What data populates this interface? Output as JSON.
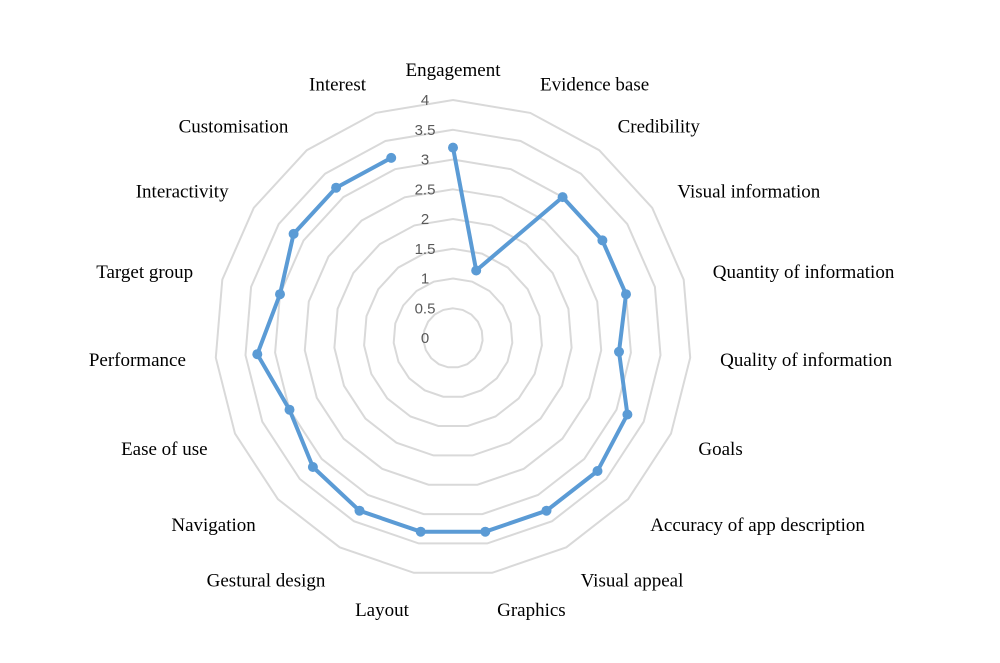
{
  "chart_data": {
    "type": "radar",
    "categories": [
      "Engagement",
      "Evidence base",
      "Credibility",
      "Visual information",
      "Quantity of information",
      "Quality of information",
      "Goals",
      "Accuracy of app description",
      "Visual appeal",
      "Graphics",
      "Layout",
      "Gestural design",
      "Navigation",
      "Ease of use",
      "Performance",
      "Target group",
      "Interactivity",
      "Customisation",
      "Interest"
    ],
    "series": [
      {
        "values": [
          3.2,
          1.2,
          3.0,
          3.0,
          3.0,
          2.8,
          3.2,
          3.3,
          3.3,
          3.3,
          3.3,
          3.3,
          3.2,
          3.0,
          3.3,
          3.0,
          3.2,
          3.2,
          3.2
        ],
        "color": "#5b9bd5"
      }
    ],
    "axis": {
      "min": 0,
      "max": 4,
      "step": 0.5,
      "tick_labels": [
        "0",
        "0.5",
        "1",
        "1.5",
        "2",
        "2.5",
        "3",
        "3.5",
        "4"
      ]
    },
    "grid": true,
    "grid_color": "#d9d9d9",
    "legend": "none"
  }
}
